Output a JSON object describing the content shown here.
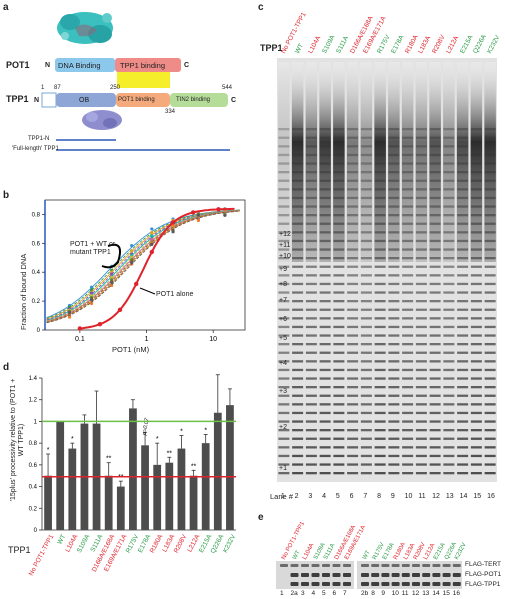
{
  "panel_labels": {
    "a": "a",
    "b": "b",
    "c": "c",
    "d": "d",
    "e": "e"
  },
  "panel_a": {
    "pot1_label": "POT1",
    "pot1_domains": [
      "DNA Binding",
      "TPP1 binding"
    ],
    "pot1_n": "N",
    "pot1_c": "C",
    "tpp1_label": "TPP1",
    "tpp1_n": "N",
    "tpp1_c": "C",
    "tpp1_domains": [
      "OB",
      "POT1 binding",
      "TIN2 binding"
    ],
    "tpp1_positions": [
      "1",
      "87",
      "250",
      "334",
      "544"
    ],
    "constructs": [
      "TPP1-N",
      "'Full-length' TPP1"
    ]
  },
  "panel_b": {
    "ylabel": "Fraction of bound DNA",
    "xlabel": "POT1 (nM)",
    "yticks": [
      "0",
      "0.2",
      "0.4",
      "0.6",
      "0.8"
    ],
    "xticks": [
      "0.1",
      "1",
      "10"
    ],
    "annotation_wt": "POT1 + WT or mutant TPP1",
    "annotation_alone": "POT1 alone"
  },
  "panel_c": {
    "tpp1_label": "TPP1",
    "lanes": [
      {
        "label": "No POT1-TPP1",
        "color": "red"
      },
      {
        "label": "WT",
        "color": "green"
      },
      {
        "label": "L104A",
        "color": "red"
      },
      {
        "label": "S109A",
        "color": "green"
      },
      {
        "label": "S111A",
        "color": "green"
      },
      {
        "label": "D166A/E168A",
        "color": "red"
      },
      {
        "label": "E169A/E171A",
        "color": "red"
      },
      {
        "label": "R175V",
        "color": "green"
      },
      {
        "label": "E178A",
        "color": "green"
      },
      {
        "label": "R180A",
        "color": "red"
      },
      {
        "label": "L183A",
        "color": "red"
      },
      {
        "label": "R208V",
        "color": "red"
      },
      {
        "label": "L212A",
        "color": "red"
      },
      {
        "label": "E215A",
        "color": "green"
      },
      {
        "label": "Q226A",
        "color": "green"
      },
      {
        "label": "K232V",
        "color": "green"
      }
    ],
    "repeat_labels": [
      "+12",
      "+11",
      "+10",
      "+9",
      "+8",
      "+7",
      "+6",
      "+5",
      "+4",
      "+3",
      "+2",
      "+1"
    ],
    "lane_title": "Lane #",
    "lane_numbers": [
      "1",
      "2",
      "3",
      "4",
      "5",
      "6",
      "7",
      "8",
      "9",
      "10",
      "11",
      "12",
      "13",
      "14",
      "15",
      "16"
    ]
  },
  "panel_d": {
    "ylabel": "'15plus' processivity relative to (POT1 + WT TPP1)",
    "xlabel": "TPP1",
    "yticks": [
      "0",
      "0.2",
      "0.4",
      "0.6",
      "0.8",
      "1",
      "1.2",
      "1.4"
    ],
    "sig_labels": [
      "*",
      "",
      "*",
      "",
      "",
      "**",
      "**",
      "",
      "",
      "*",
      "**",
      "*",
      "**",
      "*",
      "",
      ""
    ],
    "pvalue_label": "p=0.07"
  },
  "panel_e": {
    "lanes": [
      {
        "label": "No POT1-TPP1",
        "color": "red"
      },
      {
        "label": "WT",
        "color": "green"
      },
      {
        "label": "L104A",
        "color": "red"
      },
      {
        "label": "S109A",
        "color": "green"
      },
      {
        "label": "S111A",
        "color": "green"
      },
      {
        "label": "D166A/E168A",
        "color": "red"
      },
      {
        "label": "E169A/E171A",
        "color": "red"
      },
      {
        "label": "WT",
        "color": "green"
      },
      {
        "label": "R175V",
        "color": "green"
      },
      {
        "label": "E178A",
        "color": "green"
      },
      {
        "label": "R180A",
        "color": "red"
      },
      {
        "label": "L183A",
        "color": "red"
      },
      {
        "label": "R208V",
        "color": "red"
      },
      {
        "label": "L212A",
        "color": "red"
      },
      {
        "label": "E215A",
        "color": "green"
      },
      {
        "label": "Q226A",
        "color": "green"
      },
      {
        "label": "K232V",
        "color": "green"
      }
    ],
    "blot_labels": [
      "FLAG-TERT",
      "FLAG-POT1",
      "FLAG-TPP1"
    ],
    "lane_numbers": [
      "1",
      "2a",
      "3",
      "4",
      "5",
      "6",
      "7",
      "2b",
      "8",
      "9",
      "10",
      "11",
      "12",
      "13",
      "14",
      "15",
      "16"
    ]
  },
  "chart_data": [
    {
      "type": "line",
      "title": "",
      "xlabel": "POT1 (nM)",
      "ylabel": "Fraction of bound DNA",
      "xscale": "log",
      "xlim": [
        0.03,
        30
      ],
      "ylim": [
        0,
        0.9
      ],
      "series": [
        {
          "name": "POT1 alone",
          "x": [
            0.1,
            0.3,
            1,
            3,
            10,
            20
          ],
          "values": [
            0.02,
            0.1,
            0.45,
            0.72,
            0.82,
            0.83
          ]
        },
        {
          "name": "POT1 + WT or mutant TPP1",
          "x": [
            0.05,
            0.1,
            0.3,
            1,
            3,
            10,
            20
          ],
          "values": [
            0.1,
            0.25,
            0.55,
            0.75,
            0.82,
            0.84,
            0.84
          ]
        }
      ]
    },
    {
      "type": "bar",
      "title": "",
      "xlabel": "TPP1",
      "ylabel": "'15plus' processivity relative to (POT1 + WT TPP1)",
      "ylim": [
        0,
        1.4
      ],
      "categories": [
        "No POT1-TPP1",
        "WT",
        "L104A",
        "S109A",
        "S111A",
        "D166A/E168A",
        "E169A/E171A",
        "R175V",
        "E178A",
        "R180A",
        "L183A",
        "R208V",
        "L212A",
        "E215A",
        "Q226A",
        "K232V"
      ],
      "values": [
        0.5,
        1.0,
        0.75,
        0.98,
        0.98,
        0.5,
        0.4,
        1.12,
        0.78,
        0.6,
        0.62,
        0.75,
        0.5,
        0.8,
        1.08,
        1.15
      ],
      "errors": [
        0.2,
        0.0,
        0.05,
        0.08,
        0.3,
        0.12,
        0.05,
        0.08,
        0.12,
        0.2,
        0.05,
        0.12,
        0.05,
        0.08,
        0.35,
        0.15
      ],
      "reference_lines": [
        1.0,
        0.49
      ]
    }
  ]
}
